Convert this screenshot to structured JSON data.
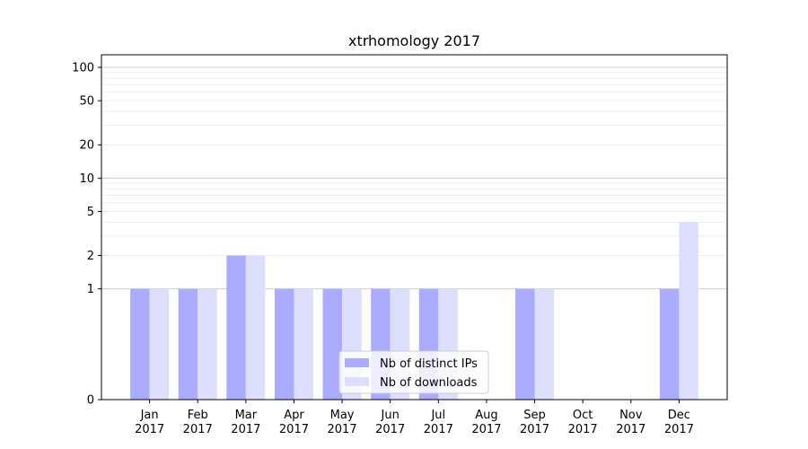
{
  "chart_data": {
    "type": "bar",
    "title": "xtrhomology 2017",
    "xlabel": "",
    "ylabel": "",
    "y_scale": "symlog",
    "ylim": [
      0,
      130
    ],
    "categories": [
      {
        "month": "Jan",
        "year": "2017"
      },
      {
        "month": "Feb",
        "year": "2017"
      },
      {
        "month": "Mar",
        "year": "2017"
      },
      {
        "month": "Apr",
        "year": "2017"
      },
      {
        "month": "May",
        "year": "2017"
      },
      {
        "month": "Jun",
        "year": "2017"
      },
      {
        "month": "Jul",
        "year": "2017"
      },
      {
        "month": "Aug",
        "year": "2017"
      },
      {
        "month": "Sep",
        "year": "2017"
      },
      {
        "month": "Oct",
        "year": "2017"
      },
      {
        "month": "Nov",
        "year": "2017"
      },
      {
        "month": "Dec",
        "year": "2017"
      }
    ],
    "series": [
      {
        "name": "Nb of distinct IPs",
        "color": "#aaaaff",
        "values": [
          1,
          1,
          2,
          1,
          1,
          1,
          1,
          0,
          1,
          0,
          0,
          1
        ]
      },
      {
        "name": "Nb of downloads",
        "color": "#ddddff",
        "values": [
          1,
          1,
          2,
          1,
          1,
          1,
          1,
          0,
          1,
          0,
          0,
          4
        ]
      }
    ],
    "y_ticks": [
      "0",
      "1",
      "2",
      "5",
      "10",
      "20",
      "50",
      "100"
    ],
    "grid": true,
    "legend_position": "bottom-center"
  }
}
